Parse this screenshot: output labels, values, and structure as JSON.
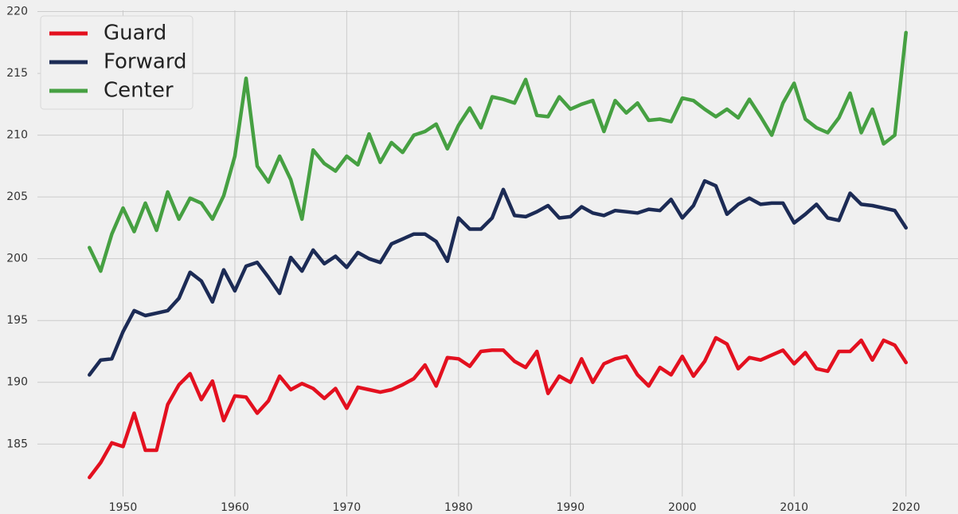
{
  "chart_data": {
    "type": "line",
    "title": "",
    "xlabel": "",
    "ylabel": "",
    "xlim": [
      1942.35,
      2024.65
    ],
    "ylim": [
      180.76,
      220.1
    ],
    "grid": true,
    "legend_position": "top-left",
    "x_ticks": [
      1950,
      1960,
      1970,
      1980,
      1990,
      2000,
      2010,
      2020
    ],
    "y_ticks": [
      185,
      190,
      195,
      200,
      205,
      210,
      215,
      220
    ],
    "x": [
      1947,
      1948,
      1949,
      1950,
      1951,
      1952,
      1953,
      1954,
      1955,
      1956,
      1957,
      1958,
      1959,
      1960,
      1961,
      1962,
      1963,
      1964,
      1965,
      1966,
      1967,
      1968,
      1969,
      1970,
      1971,
      1972,
      1973,
      1974,
      1975,
      1976,
      1977,
      1978,
      1979,
      1980,
      1981,
      1982,
      1983,
      1984,
      1985,
      1986,
      1987,
      1988,
      1989,
      1990,
      1991,
      1992,
      1993,
      1994,
      1995,
      1996,
      1997,
      1998,
      1999,
      2000,
      2001,
      2002,
      2003,
      2004,
      2005,
      2006,
      2007,
      2008,
      2009,
      2010,
      2011,
      2012,
      2013,
      2014,
      2015,
      2016,
      2017,
      2018,
      2019,
      2020
    ],
    "series": [
      {
        "name": "Guard",
        "color": "#e3101f",
        "values": [
          182.3,
          183.5,
          185.1,
          184.8,
          187.5,
          184.5,
          184.5,
          188.2,
          189.8,
          190.7,
          188.6,
          190.1,
          186.9,
          188.9,
          188.8,
          187.5,
          188.5,
          190.5,
          189.4,
          189.9,
          189.5,
          188.7,
          189.5,
          187.9,
          189.6,
          189.4,
          189.2,
          189.4,
          189.8,
          190.3,
          191.4,
          189.7,
          192.0,
          191.9,
          191.3,
          192.5,
          192.6,
          192.6,
          191.7,
          191.2,
          192.5,
          189.1,
          190.5,
          190.0,
          191.9,
          190.0,
          191.5,
          191.9,
          192.1,
          190.6,
          189.7,
          191.2,
          190.6,
          192.1,
          190.5,
          191.7,
          193.6,
          193.1,
          191.1,
          192.0,
          191.8,
          192.2,
          192.6,
          191.5,
          192.4,
          191.1,
          190.9,
          192.5,
          192.5,
          193.4,
          191.8,
          193.4,
          193.0,
          191.6
        ]
      },
      {
        "name": "Forward",
        "color": "#1c2b55",
        "values": [
          190.6,
          191.8,
          191.9,
          194.1,
          195.8,
          195.4,
          195.6,
          195.8,
          196.8,
          198.9,
          198.2,
          196.5,
          199.1,
          197.4,
          199.4,
          199.7,
          198.5,
          197.2,
          200.1,
          199.0,
          200.7,
          199.6,
          200.2,
          199.3,
          200.5,
          200.0,
          199.7,
          201.2,
          201.6,
          202.0,
          202.0,
          201.4,
          199.8,
          203.3,
          202.4,
          202.4,
          203.3,
          205.6,
          203.5,
          203.4,
          203.8,
          204.3,
          203.3,
          203.4,
          204.2,
          203.7,
          203.5,
          203.9,
          203.8,
          203.7,
          204.0,
          203.9,
          204.8,
          203.3,
          204.3,
          206.3,
          205.9,
          203.6,
          204.4,
          204.9,
          204.4,
          204.5,
          204.5,
          202.9,
          203.6,
          204.4,
          203.3,
          203.1,
          205.3,
          204.4,
          204.3,
          204.1,
          203.9,
          202.5
        ]
      },
      {
        "name": "Center",
        "color": "#46a042",
        "values": [
          200.9,
          199.0,
          202.0,
          204.1,
          202.2,
          204.5,
          202.3,
          205.4,
          203.2,
          204.9,
          204.5,
          203.2,
          205.1,
          208.3,
          214.6,
          207.5,
          206.2,
          208.3,
          206.4,
          203.2,
          208.8,
          207.7,
          207.1,
          208.3,
          207.6,
          210.1,
          207.8,
          209.4,
          208.6,
          210.0,
          210.3,
          210.9,
          208.9,
          210.8,
          212.2,
          210.6,
          213.1,
          212.9,
          212.6,
          214.5,
          211.6,
          211.5,
          213.1,
          212.1,
          212.5,
          212.8,
          210.3,
          212.8,
          211.8,
          212.6,
          211.2,
          211.3,
          211.1,
          213.0,
          212.8,
          212.1,
          211.5,
          212.1,
          211.4,
          212.9,
          211.5,
          210.0,
          212.6,
          214.2,
          211.3,
          210.6,
          210.2,
          211.4,
          213.4,
          210.2,
          212.1,
          209.3,
          210.0,
          218.3
        ]
      }
    ]
  }
}
